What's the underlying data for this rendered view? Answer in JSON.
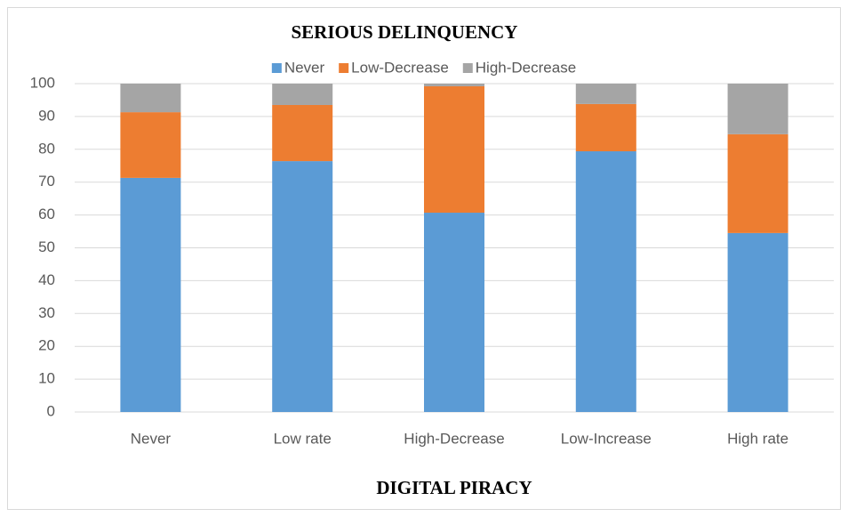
{
  "chart_data": {
    "type": "stacked_bar",
    "title": "SERIOUS DELINQUENCY",
    "x_label": "DIGITAL PIRACY",
    "categories": [
      "Never",
      "Low rate",
      "High-Decrease",
      "Low-Increase",
      "High rate"
    ],
    "series": [
      {
        "name": "Never",
        "color": "#5b9bd5",
        "values": [
          71.3,
          76.4,
          60.7,
          79.4,
          54.5
        ]
      },
      {
        "name": "Low-Decrease",
        "color": "#ed7d31",
        "values": [
          20.0,
          17.1,
          38.5,
          14.4,
          30.1
        ]
      },
      {
        "name": "High-Decrease",
        "color": "#a5a5a5",
        "values": [
          8.7,
          6.5,
          0.8,
          6.2,
          15.4
        ]
      }
    ],
    "ylim": [
      0,
      100
    ],
    "yticks": [
      0,
      10,
      20,
      30,
      40,
      50,
      60,
      70,
      80,
      90,
      100
    ],
    "grid": true,
    "legend": "top"
  }
}
